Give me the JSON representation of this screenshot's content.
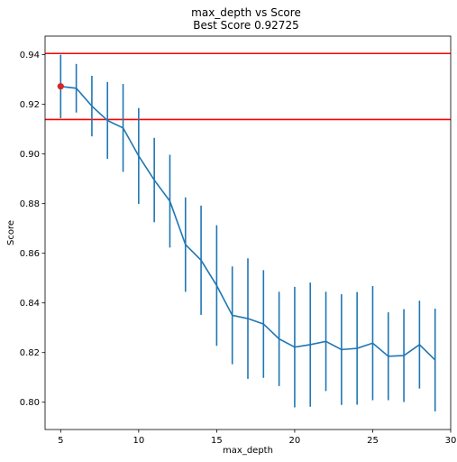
{
  "chart_data": {
    "type": "line",
    "title": "max_depth vs Score",
    "subtitle": "Best Score 0.92725",
    "xlabel": "max_depth",
    "ylabel": "Score",
    "xlim": [
      4,
      30
    ],
    "ylim": [
      0.789,
      0.9475
    ],
    "xticks": [
      "5",
      "10",
      "15",
      "20",
      "25",
      "30"
    ],
    "xtick_values": [
      5,
      10,
      15,
      20,
      25,
      30
    ],
    "yticks": [
      "0.80",
      "0.82",
      "0.84",
      "0.86",
      "0.88",
      "0.90",
      "0.92",
      "0.94"
    ],
    "ytick_values": [
      0.8,
      0.82,
      0.84,
      0.86,
      0.88,
      0.9,
      0.92,
      0.94
    ],
    "grid": false,
    "series": [
      {
        "color": "#1f77b4",
        "x": [
          5,
          6,
          7,
          8,
          9,
          10,
          11,
          12,
          13,
          14,
          15,
          16,
          17,
          18,
          19,
          20,
          21,
          22,
          23,
          24,
          25,
          26,
          27,
          28,
          29
        ],
        "values": [
          0.9272,
          0.9265,
          0.9193,
          0.9135,
          0.9105,
          0.8992,
          0.8895,
          0.881,
          0.8635,
          0.8572,
          0.847,
          0.835,
          0.8337,
          0.8315,
          0.8255,
          0.8222,
          0.8232,
          0.8245,
          0.8212,
          0.8217,
          0.8238,
          0.8185,
          0.8188,
          0.8232,
          0.817
        ],
        "errors": [
          0.0128,
          0.0098,
          0.0122,
          0.0155,
          0.0177,
          0.0193,
          0.017,
          0.0187,
          0.019,
          0.022,
          0.0243,
          0.0197,
          0.0243,
          0.0217,
          0.019,
          0.0243,
          0.025,
          0.02,
          0.0223,
          0.0227,
          0.023,
          0.0177,
          0.0187,
          0.0177,
          0.0207
        ]
      }
    ],
    "best_point": {
      "x": 5,
      "y": 0.92725,
      "color": "#d62728"
    },
    "hlines": [
      {
        "y": 0.9405,
        "color": "#ff0000"
      },
      {
        "y": 0.9139,
        "color": "#ff0000"
      }
    ]
  }
}
